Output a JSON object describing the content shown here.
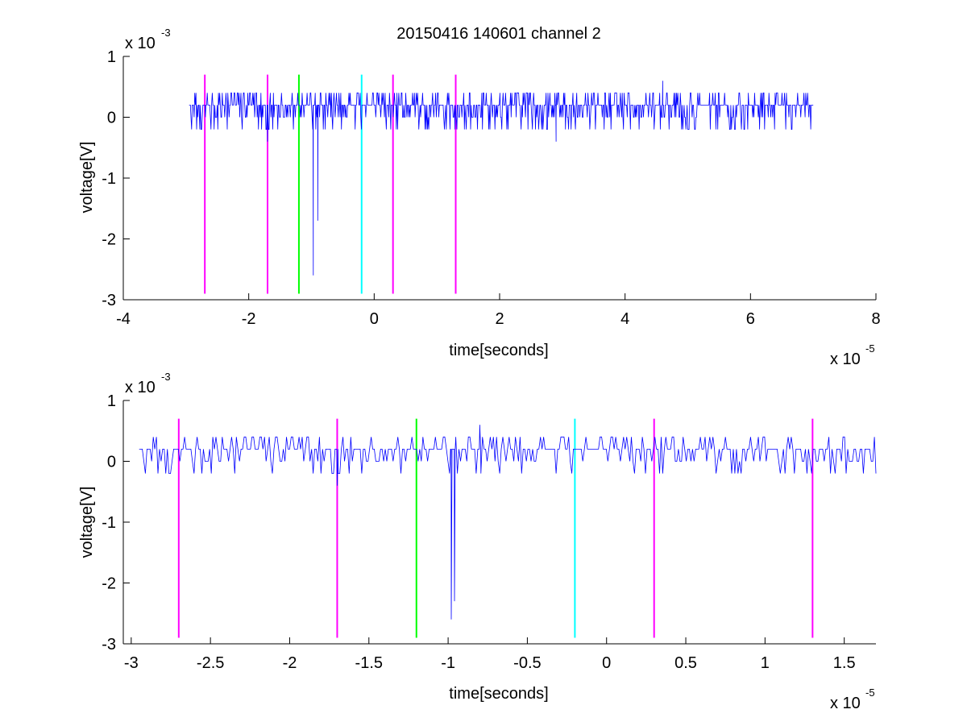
{
  "chart_data": [
    {
      "type": "line",
      "title": "20150416 140601 channel 2",
      "xlabel": "time[seconds]",
      "ylabel": "voltage[V]",
      "x_exponent_label": "x 10",
      "x_exponent": "-5",
      "y_exponent_label": "x 10",
      "y_exponent": "-3",
      "xlim": [
        -4,
        8
      ],
      "ylim": [
        -3,
        1
      ],
      "x_ticks": [
        "-4",
        "-2",
        "0",
        "2",
        "4",
        "6",
        "8"
      ],
      "y_ticks": [
        "-3",
        "-2",
        "-1",
        "0",
        "1"
      ],
      "grid": false,
      "series": [
        {
          "color": "#0000ff",
          "x_range": [
            -2.95,
            7.0
          ],
          "baseline": 0.0,
          "noise_levels": [
            0.2,
            0.2,
            0.0,
            0.4,
            -0.2
          ],
          "features": [
            {
              "x": -1.7,
              "y": -0.4
            },
            {
              "x": -0.97,
              "y": -2.6
            },
            {
              "x": -0.9,
              "y": -1.7
            },
            {
              "x": 2.9,
              "y": -0.4
            },
            {
              "x": 4.6,
              "y": 0.6
            }
          ]
        }
      ],
      "markers": [
        {
          "x": -2.7,
          "color": "#ff00ff"
        },
        {
          "x": -1.7,
          "color": "#ff00ff"
        },
        {
          "x": -1.2,
          "color": "#00ff00"
        },
        {
          "x": -0.2,
          "color": "#00ffff"
        },
        {
          "x": 0.3,
          "color": "#ff00ff"
        },
        {
          "x": 1.3,
          "color": "#ff00ff"
        }
      ],
      "marker_range": [
        -2.9,
        0.7
      ]
    },
    {
      "type": "line",
      "xlabel": "time[seconds]",
      "ylabel": "voltage[V]",
      "x_exponent_label": "x 10",
      "x_exponent": "-5",
      "y_exponent_label": "x 10",
      "y_exponent": "-3",
      "xlim": [
        -3.05,
        1.7
      ],
      "ylim": [
        -3,
        1
      ],
      "x_ticks": [
        "-3",
        "-2.5",
        "-2",
        "-1.5",
        "-1",
        "-0.5",
        "0",
        "0.5",
        "1",
        "1.5"
      ],
      "x_tick_values": [
        -3,
        -2.5,
        -2,
        -1.5,
        -1,
        -0.5,
        0,
        0.5,
        1,
        1.5
      ],
      "y_ticks": [
        "-3",
        "-2",
        "-1",
        "0",
        "1"
      ],
      "grid": false,
      "series": [
        {
          "color": "#0000ff",
          "x_range": [
            -2.95,
            1.7
          ],
          "baseline": 0.0,
          "noise_levels": [
            0.2,
            0.2,
            0.0,
            0.4,
            -0.2
          ],
          "features": [
            {
              "x": -1.7,
              "y": -0.4
            },
            {
              "x": -0.98,
              "y": -2.6
            },
            {
              "x": -0.96,
              "y": -2.3
            },
            {
              "x": -0.8,
              "y": 0.6
            }
          ]
        }
      ],
      "markers": [
        {
          "x": -2.7,
          "color": "#ff00ff"
        },
        {
          "x": -1.7,
          "color": "#ff00ff"
        },
        {
          "x": -1.2,
          "color": "#00ff00"
        },
        {
          "x": -0.2,
          "color": "#00ffff"
        },
        {
          "x": 0.3,
          "color": "#ff00ff"
        },
        {
          "x": 1.3,
          "color": "#ff00ff"
        }
      ],
      "marker_range": [
        -2.9,
        0.7
      ]
    }
  ]
}
